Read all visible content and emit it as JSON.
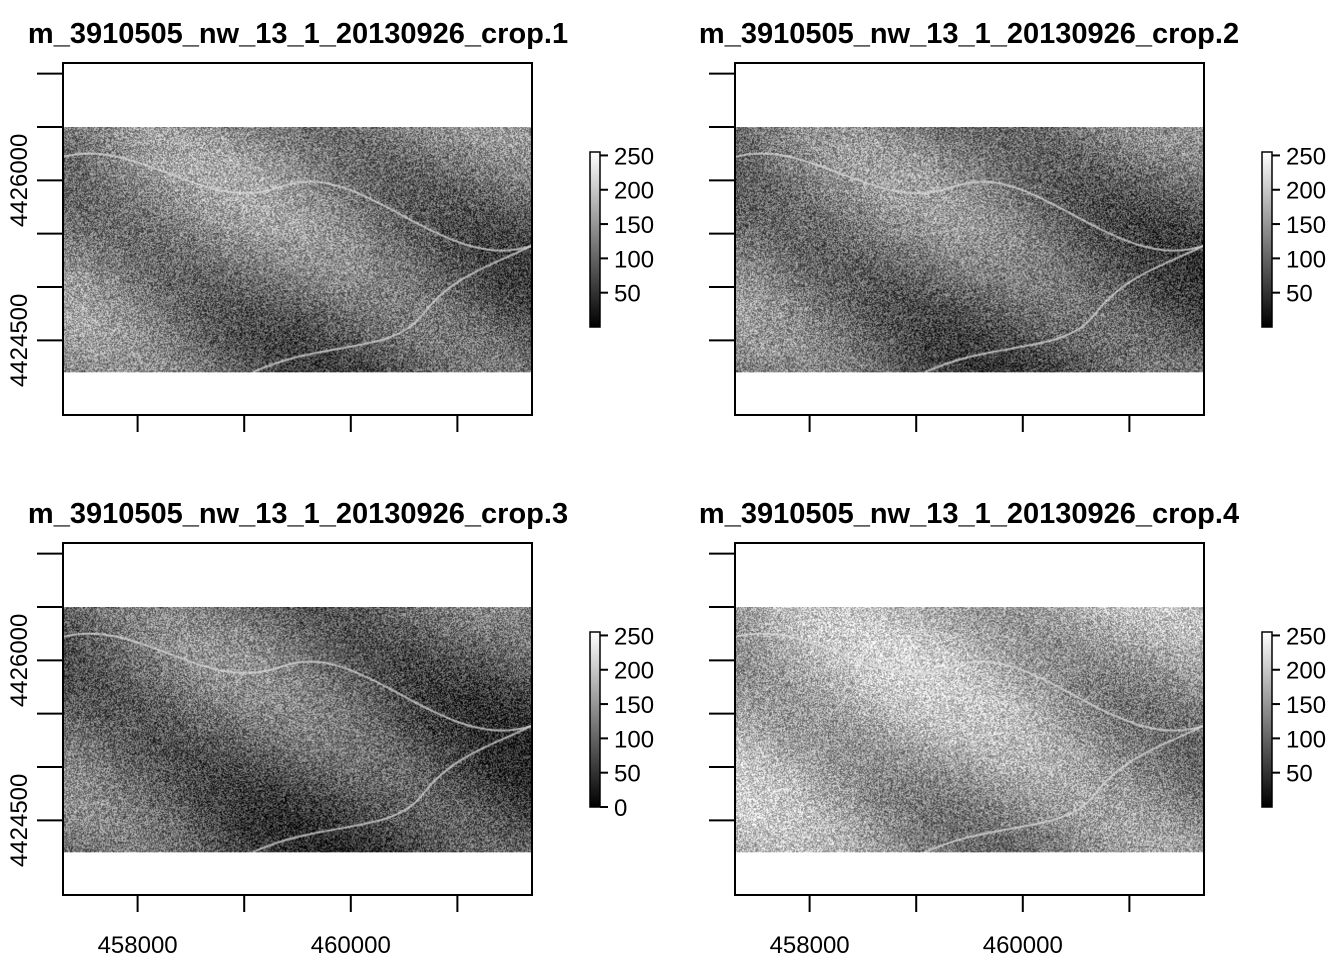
{
  "chart_data": [
    {
      "type": "heatmap",
      "title": "m_3910505_nw_13_1_20130926_crop.1",
      "xlim": [
        457300,
        461700
      ],
      "ylim": [
        4423800,
        4427100
      ],
      "raster_extent": {
        "x": [
          457300,
          461700
        ],
        "y": [
          4424200,
          4426500
        ]
      },
      "x_ticks": [
        458000,
        459000,
        460000,
        461000
      ],
      "x_tick_labels": [],
      "y_ticks": [
        4424500,
        4425000,
        4425500,
        4426000,
        4426500,
        4427000
      ],
      "y_tick_labels": [
        "4424500",
        "",
        "",
        "4426000",
        "",
        ""
      ],
      "colorbar": {
        "min": 0,
        "max": 255,
        "ticks": [
          50,
          100,
          150,
          200,
          250
        ],
        "palette": [
          "#000000",
          "#ffffff"
        ]
      },
      "brightness": 0.45,
      "show_x_labels": false,
      "show_y_labels": true
    },
    {
      "type": "heatmap",
      "title": "m_3910505_nw_13_1_20130926_crop.2",
      "xlim": [
        457300,
        461700
      ],
      "ylim": [
        4423800,
        4427100
      ],
      "raster_extent": {
        "x": [
          457300,
          461700
        ],
        "y": [
          4424200,
          4426500
        ]
      },
      "x_ticks": [
        458000,
        459000,
        460000,
        461000
      ],
      "x_tick_labels": [],
      "y_ticks": [
        4424500,
        4425000,
        4425500,
        4426000,
        4426500,
        4427000
      ],
      "y_tick_labels": [],
      "colorbar": {
        "min": 0,
        "max": 255,
        "ticks": [
          50,
          100,
          150,
          200,
          250
        ],
        "palette": [
          "#000000",
          "#ffffff"
        ]
      },
      "brightness": 0.42,
      "show_x_labels": false,
      "show_y_labels": false
    },
    {
      "type": "heatmap",
      "title": "m_3910505_nw_13_1_20130926_crop.3",
      "xlim": [
        457300,
        461700
      ],
      "ylim": [
        4423800,
        4427100
      ],
      "raster_extent": {
        "x": [
          457300,
          461700
        ],
        "y": [
          4424200,
          4426500
        ]
      },
      "x_ticks": [
        458000,
        459000,
        460000,
        461000
      ],
      "x_tick_labels": [
        "458000",
        "",
        "460000",
        ""
      ],
      "y_ticks": [
        4424500,
        4425000,
        4425500,
        4426000,
        4426500,
        4427000
      ],
      "y_tick_labels": [
        "4424500",
        "",
        "",
        "4426000",
        "",
        ""
      ],
      "colorbar": {
        "min": 0,
        "max": 255,
        "ticks": [
          0,
          50,
          100,
          150,
          200,
          250
        ],
        "palette": [
          "#000000",
          "#ffffff"
        ]
      },
      "brightness": 0.36,
      "show_x_labels": true,
      "show_y_labels": true
    },
    {
      "type": "heatmap",
      "title": "m_3910505_nw_13_1_20130926_crop.4",
      "xlim": [
        457300,
        461700
      ],
      "ylim": [
        4423800,
        4427100
      ],
      "raster_extent": {
        "x": [
          457300,
          461700
        ],
        "y": [
          4424200,
          4426500
        ]
      },
      "x_ticks": [
        458000,
        459000,
        460000,
        461000
      ],
      "x_tick_labels": [
        "458000",
        "",
        "460000",
        ""
      ],
      "y_ticks": [
        4424500,
        4425000,
        4425500,
        4426000,
        4426500,
        4427000
      ],
      "y_tick_labels": [],
      "colorbar": {
        "min": 0,
        "max": 255,
        "ticks": [
          50,
          100,
          150,
          200,
          250
        ],
        "palette": [
          "#000000",
          "#ffffff"
        ]
      },
      "brightness": 0.62,
      "show_x_labels": true,
      "show_y_labels": false
    }
  ]
}
